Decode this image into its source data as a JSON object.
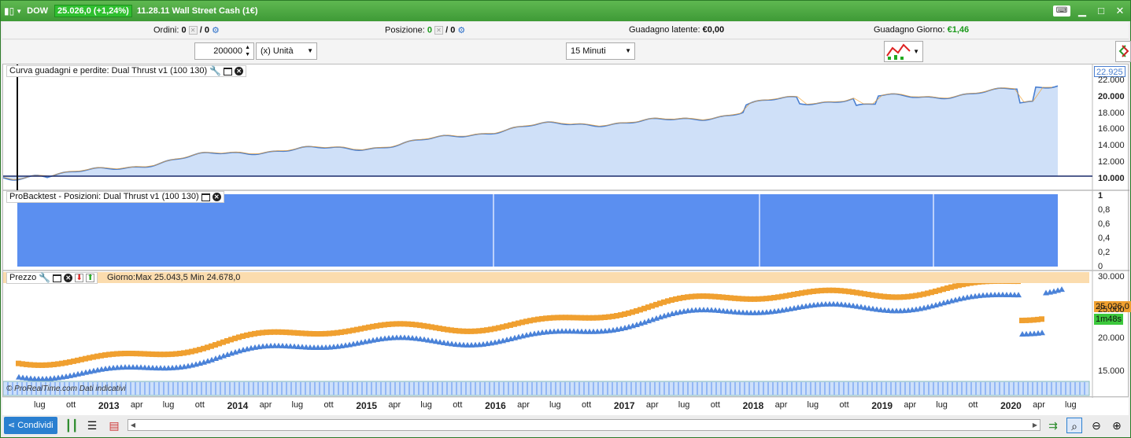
{
  "titlebar": {
    "symbol": "DOW",
    "price_change": "25.026,0 (+1,24%)",
    "time_name": "11.28.11  Wall Street Cash (1€)"
  },
  "info": {
    "ordini_label": "Ordini:",
    "ordini_val": "0",
    "ordini_sep": "/ 0",
    "posizione_label": "Posizione:",
    "posizione_val": "0",
    "posizione_sep": "/ 0",
    "lat_label": "Guadagno latente:",
    "lat_val": "€0,00",
    "day_label": "Guadagno Giorno:",
    "day_val": "€1,46"
  },
  "controls": {
    "quantity": "200000",
    "unit": "(x) Unità",
    "timeframe": "15 Minuti"
  },
  "pane1": {
    "label": "Curva guadagni e perdite: Dual Thrust v1 (100 130)",
    "top_badge": "22.925",
    "ticks": [
      "22.000",
      "20.000",
      "18.000",
      "16.000",
      "14.000",
      "12.000",
      "10.000"
    ]
  },
  "pane2": {
    "label": "ProBacktest - Posizioni: Dual Thrust v1 (100 130)",
    "ticks": [
      "1",
      "0,8",
      "0,6",
      "0,4",
      "0,2",
      "0"
    ]
  },
  "pane3": {
    "label": "Prezzo",
    "day_info": "Giorno:Max 25.043,5 Min 24.678,0",
    "price_badge": "25.026,0",
    "timer_badge": "1m48s",
    "ticks": [
      "30.000",
      "25.000",
      "20.000",
      "15.000"
    ],
    "watermark": "© ProRealTime.com  Dati indicativi"
  },
  "timeaxis": {
    "labels": [
      "lug",
      "ott",
      "2013",
      "apr",
      "lug",
      "ott",
      "2014",
      "apr",
      "lug",
      "ott",
      "2015",
      "apr",
      "lug",
      "ott",
      "2016",
      "apr",
      "lug",
      "ott",
      "2017",
      "apr",
      "lug",
      "ott",
      "2018",
      "apr",
      "lug",
      "ott",
      "2019",
      "apr",
      "lug",
      "ott",
      "2020",
      "apr",
      "lug"
    ]
  },
  "bottombar": {
    "share": "Condividi"
  },
  "colors": {
    "accent": "#3e9a36",
    "equity_fill": "#cfe0f8",
    "equity_line": "#4a7fd0",
    "position": "#5b8ff0",
    "long": "#f0a030",
    "short": "#4a82d8"
  }
}
